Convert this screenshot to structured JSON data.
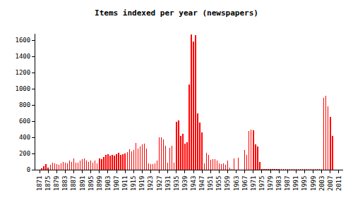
{
  "chart_data": {
    "type": "bar",
    "title": "Items indexed per year (newspapers)",
    "x": [
      1872,
      1873,
      1874,
      1875,
      1876,
      1877,
      1878,
      1879,
      1880,
      1881,
      1882,
      1883,
      1884,
      1885,
      1886,
      1887,
      1888,
      1889,
      1890,
      1891,
      1892,
      1893,
      1894,
      1895,
      1896,
      1897,
      1898,
      1899,
      1900,
      1901,
      1902,
      1903,
      1904,
      1905,
      1906,
      1907,
      1908,
      1909,
      1910,
      1911,
      1912,
      1913,
      1914,
      1915,
      1916,
      1917,
      1918,
      1919,
      1920,
      1921,
      1922,
      1923,
      1924,
      1925,
      1926,
      1927,
      1928,
      1929,
      1930,
      1931,
      1932,
      1933,
      1934,
      1935,
      1936,
      1937,
      1938,
      1939,
      1940,
      1941,
      1942,
      1943,
      1944,
      1945,
      1946,
      1947,
      1948,
      1949,
      1950,
      1951,
      1952,
      1953,
      1954,
      1955,
      1956,
      1957,
      1958,
      1959,
      1960,
      1961,
      1962,
      1963,
      1964,
      1965,
      1966,
      1967,
      1968,
      1969,
      1970,
      1971,
      1972,
      1973,
      1974,
      1975,
      1976,
      1977,
      1978,
      1979,
      1980,
      1981,
      1982,
      1983,
      1984,
      1985,
      1986,
      1987,
      1988,
      1989,
      1990,
      1991,
      1992,
      1993,
      1994,
      1995,
      1996,
      1997,
      1998,
      1999,
      2000,
      2001,
      2002,
      2003,
      2004,
      2005,
      2006,
      2007,
      2008
    ],
    "values": [
      20,
      40,
      70,
      30,
      60,
      90,
      80,
      70,
      60,
      80,
      100,
      90,
      80,
      110,
      100,
      140,
      90,
      90,
      110,
      130,
      140,
      110,
      100,
      110,
      90,
      110,
      80,
      140,
      130,
      160,
      180,
      190,
      170,
      180,
      170,
      190,
      210,
      180,
      190,
      200,
      220,
      250,
      230,
      240,
      330,
      260,
      290,
      310,
      320,
      260,
      80,
      70,
      70,
      80,
      110,
      400,
      400,
      370,
      300,
      90,
      270,
      300,
      90,
      590,
      610,
      420,
      440,
      320,
      340,
      1050,
      1670,
      1580,
      1660,
      700,
      580,
      460,
      80,
      210,
      180,
      120,
      130,
      130,
      110,
      80,
      70,
      80,
      60,
      110,
      30,
      10,
      140,
      0,
      150,
      0,
      0,
      240,
      180,
      480,
      500,
      490,
      310,
      290,
      100,
      5,
      5,
      5,
      5,
      5,
      5,
      5,
      5,
      5,
      5,
      5,
      5,
      5,
      5,
      5,
      5,
      5,
      5,
      5,
      5,
      5,
      5,
      5,
      5,
      5,
      5,
      5,
      5,
      5,
      890,
      910,
      780,
      650,
      420
    ],
    "color": "#ff0000",
    "xlim": [
      1869,
      2013
    ],
    "xticks": [
      1871,
      1875,
      1879,
      1883,
      1887,
      1891,
      1895,
      1899,
      1903,
      1907,
      1911,
      1915,
      1919,
      1923,
      1927,
      1931,
      1935,
      1939,
      1943,
      1947,
      1951,
      1955,
      1959,
      1963,
      1967,
      1971,
      1975,
      1979,
      1983,
      1987,
      1991,
      1995,
      1999,
      2003,
      2007,
      2011
    ],
    "ylim": [
      0,
      1680
    ],
    "yticks": [
      0,
      200,
      400,
      600,
      800,
      1000,
      1200,
      1400,
      1600
    ],
    "grid": false
  }
}
